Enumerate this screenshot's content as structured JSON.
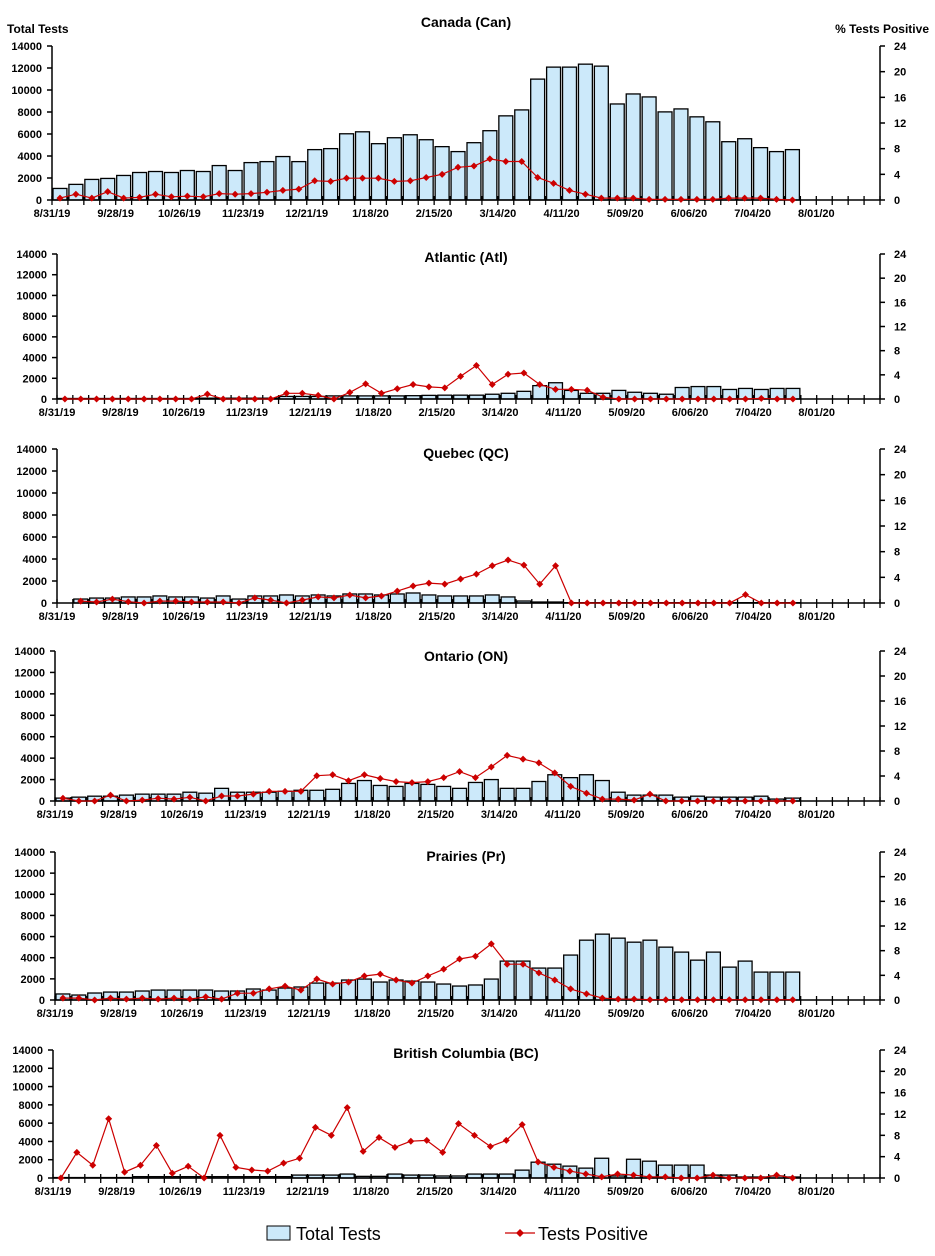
{
  "left_axis_label": "Total Tests",
  "right_axis_label": "% Tests Positive",
  "legend": {
    "bars": "Total Tests",
    "line": "Tests Positive"
  },
  "colors": {
    "bar_fill": "#cce9fa",
    "bar_stroke": "#000000",
    "line": "#cc0000"
  },
  "weeks": [
    "2019-08-31",
    "2019-09-07",
    "2019-09-14",
    "2019-09-21",
    "2019-09-28",
    "2019-10-05",
    "2019-10-12",
    "2019-10-19",
    "2019-10-26",
    "2019-11-02",
    "2019-11-09",
    "2019-11-16",
    "2019-11-23",
    "2019-11-30",
    "2019-12-07",
    "2019-12-14",
    "2019-12-21",
    "2019-12-28",
    "2020-01-04",
    "2020-01-11",
    "2020-01-18",
    "2020-01-25",
    "2020-02-01",
    "2020-02-08",
    "2020-02-15",
    "2020-02-22",
    "2020-02-29",
    "2020-03-07",
    "2020-03-14",
    "2020-03-21",
    "2020-03-28",
    "2020-04-04",
    "2020-04-11",
    "2020-04-18",
    "2020-04-25",
    "2020-05-02",
    "2020-05-09",
    "2020-05-16",
    "2020-05-23",
    "2020-05-30",
    "2020-06-06",
    "2020-06-13",
    "2020-06-20",
    "2020-06-27",
    "2020-07-04",
    "2020-07-11",
    "2020-07-18"
  ],
  "x_tick_labels": [
    "8/31/19",
    "9/28/19",
    "10/26/19",
    "11/23/19",
    "12/21/19",
    "1/18/20",
    "2/15/20",
    "3/14/20",
    "4/11/20",
    "5/09/20",
    "6/06/20",
    "7/04/20",
    "8/01/20"
  ],
  "left_ticks": [
    0,
    2000,
    4000,
    6000,
    8000,
    10000,
    12000,
    14000
  ],
  "right_ticks": [
    0,
    4,
    8,
    12,
    16,
    20,
    24
  ],
  "chart_data": [
    {
      "type": "bar+line",
      "title": "Canada (Can)",
      "ylim": [
        0,
        14000
      ],
      "y2lim": [
        0,
        24
      ],
      "series": [
        {
          "name": "Total Tests",
          "axis": "left",
          "values": [
            1050,
            1420,
            1870,
            1960,
            2230,
            2500,
            2590,
            2500,
            2680,
            2590,
            3130,
            2680,
            3400,
            3490,
            3950,
            3490,
            4580,
            4670,
            6020,
            6200,
            5120,
            5660,
            5930,
            5480,
            4850,
            4400,
            5210,
            6300,
            7650,
            8190,
            10990,
            12080,
            12080,
            12350,
            12170,
            8730,
            9640,
            9370,
            8010,
            8280,
            7560,
            7110,
            5300,
            5570,
            4760,
            4400,
            4580
          ]
        },
        {
          "name": "Tests Positive",
          "axis": "right",
          "values": [
            0.3,
            0.9,
            0.3,
            1.3,
            0.3,
            0.4,
            0.9,
            0.5,
            0.6,
            0.5,
            1.0,
            0.9,
            1.0,
            1.2,
            1.5,
            1.7,
            3.0,
            2.9,
            3.4,
            3.4,
            3.4,
            2.9,
            3.0,
            3.5,
            4.0,
            5.1,
            5.3,
            6.4,
            6.0,
            6.0,
            3.5,
            2.6,
            1.5,
            0.9,
            0.3,
            0.3,
            0.3,
            0.1,
            0.1,
            0.1,
            0.1,
            0.1,
            0.3,
            0.3,
            0.3,
            0.1,
            0.0
          ]
        }
      ]
    },
    {
      "type": "bar+line",
      "title": "Atlantic (Atl)",
      "ylim": [
        0,
        14000
      ],
      "y2lim": [
        0,
        24
      ],
      "series": [
        {
          "name": "Total Tests",
          "axis": "left",
          "values": [
            50,
            50,
            50,
            50,
            50,
            50,
            50,
            50,
            50,
            80,
            80,
            80,
            80,
            80,
            250,
            250,
            250,
            300,
            300,
            300,
            300,
            300,
            320,
            350,
            370,
            370,
            370,
            460,
            550,
            740,
            1290,
            1570,
            830,
            550,
            550,
            830,
            650,
            550,
            460,
            1110,
            1200,
            1200,
            920,
            1020,
            920,
            1020,
            1020
          ]
        },
        {
          "name": "Tests Positive",
          "axis": "right",
          "values": [
            0,
            0,
            0,
            0,
            0,
            0,
            0,
            0,
            0,
            0.8,
            0,
            0,
            0,
            0,
            0.95,
            0.95,
            0.6,
            0,
            1.1,
            2.5,
            0.95,
            1.7,
            2.4,
            2.0,
            1.85,
            3.75,
            5.55,
            2.4,
            4.1,
            4.3,
            2.4,
            1.6,
            1.6,
            1.45,
            0.3,
            0,
            0,
            0,
            0,
            0,
            0,
            0,
            0,
            0,
            0.1,
            0,
            0
          ]
        }
      ]
    },
    {
      "type": "bar+line",
      "title": "Quebec (QC)",
      "ylim": [
        0,
        14000
      ],
      "y2lim": [
        0,
        24
      ],
      "series": [
        {
          "name": "Total Tests",
          "axis": "left",
          "values": [
            null,
            360,
            450,
            450,
            550,
            550,
            640,
            550,
            550,
            450,
            640,
            360,
            640,
            640,
            730,
            640,
            730,
            640,
            820,
            820,
            730,
            820,
            910,
            730,
            640,
            640,
            640,
            730,
            550,
            180,
            90,
            90,
            30,
            30,
            30,
            30,
            30,
            30,
            30,
            30,
            30,
            30,
            30,
            30,
            30,
            30,
            30
          ]
        },
        {
          "name": "Tests Positive",
          "axis": "right",
          "values": [
            null,
            0.3,
            0.15,
            0.6,
            0.2,
            0,
            0.3,
            0.3,
            0.15,
            0.15,
            0.15,
            0,
            0.8,
            0.45,
            0,
            0.45,
            0.95,
            0.8,
            1.25,
            0.8,
            1.1,
            1.85,
            2.65,
            3.1,
            2.95,
            3.75,
            4.5,
            5.8,
            6.7,
            5.9,
            2.95,
            5.8,
            0,
            0,
            0,
            0,
            0,
            0,
            0,
            0,
            0,
            0,
            0,
            1.3,
            0,
            0,
            0
          ]
        }
      ]
    },
    {
      "type": "bar+line",
      "title": "Ontario (ON)",
      "ylim": [
        0,
        14000
      ],
      "y2lim": [
        0,
        24
      ],
      "series": [
        {
          "name": "Total Tests",
          "axis": "left",
          "values": [
            270,
            360,
            450,
            450,
            550,
            640,
            640,
            640,
            820,
            730,
            1180,
            820,
            820,
            820,
            910,
            1000,
            1000,
            1090,
            1640,
            1910,
            1450,
            1360,
            1640,
            1550,
            1360,
            1180,
            1730,
            2000,
            1180,
            1180,
            1820,
            2450,
            2180,
            2450,
            1910,
            820,
            550,
            550,
            550,
            360,
            450,
            360,
            360,
            360,
            450,
            180,
            270
          ]
        },
        {
          "name": "Tests Positive",
          "axis": "right",
          "values": [
            0.45,
            0,
            0,
            0.95,
            0,
            0.15,
            0.45,
            0.3,
            0.6,
            0,
            0.8,
            0.8,
            1.1,
            1.55,
            1.55,
            1.55,
            4.05,
            4.2,
            3.25,
            4.2,
            3.6,
            3.1,
            2.95,
            3.1,
            3.75,
            4.7,
            3.75,
            5.45,
            7.3,
            6.7,
            6.1,
            4.5,
            2.35,
            1.25,
            0.3,
            0.3,
            0.15,
            1.1,
            0,
            0,
            0,
            0,
            0,
            0,
            0,
            0,
            0
          ]
        }
      ]
    },
    {
      "type": "bar+line",
      "title": "Prairies (Pr)",
      "ylim": [
        0,
        14000
      ],
      "y2lim": [
        0,
        24
      ],
      "series": [
        {
          "name": "Total Tests",
          "axis": "left",
          "values": [
            570,
            470,
            660,
            750,
            750,
            850,
            940,
            940,
            940,
            940,
            850,
            850,
            1040,
            940,
            1130,
            1230,
            1600,
            1600,
            1890,
            1980,
            1700,
            1890,
            1790,
            1700,
            1510,
            1320,
            1420,
            1980,
            3680,
            3680,
            3020,
            3020,
            4250,
            5660,
            6230,
            5850,
            5470,
            5660,
            5000,
            4530,
            3770,
            4530,
            3110,
            3680,
            2640,
            2640,
            2640
          ]
        },
        {
          "name": "Tests Positive",
          "axis": "right",
          "values": [
            0.3,
            0.3,
            0,
            0.3,
            0.15,
            0.3,
            0.15,
            0.3,
            0.15,
            0.5,
            0.15,
            1.1,
            1.1,
            1.8,
            2.25,
            1.6,
            3.4,
            2.6,
            2.9,
            3.9,
            4.2,
            3.25,
            2.75,
            3.9,
            5.0,
            6.65,
            7.1,
            9.1,
            5.8,
            5.8,
            4.4,
            3.25,
            1.8,
            1.0,
            0.3,
            0.15,
            0.15,
            0.05,
            0.05,
            0.05,
            0.05,
            0.05,
            0.05,
            0.05,
            0.05,
            0.05,
            0.05
          ]
        }
      ]
    },
    {
      "type": "bar+line",
      "title": "British Columbia (BC)",
      "ylim": [
        0,
        14000
      ],
      "y2lim": [
        0,
        24
      ],
      "series": [
        {
          "name": "Total Tests",
          "axis": "left",
          "values": [
            50,
            50,
            50,
            50,
            50,
            150,
            150,
            150,
            150,
            150,
            150,
            150,
            150,
            150,
            150,
            320,
            320,
            320,
            430,
            180,
            180,
            430,
            320,
            320,
            220,
            220,
            430,
            430,
            430,
            860,
            1730,
            1510,
            1300,
            1080,
            2160,
            220,
            2050,
            1840,
            1410,
            1410,
            1410,
            320,
            320,
            110,
            110,
            220,
            110
          ]
        },
        {
          "name": "Tests Positive",
          "axis": "right",
          "values": [
            0,
            4.8,
            2.4,
            11.1,
            1.1,
            2.4,
            6.1,
            0.9,
            2.2,
            0,
            8.0,
            2.0,
            1.5,
            1.3,
            2.8,
            3.7,
            9.5,
            8.0,
            13.2,
            5.0,
            7.6,
            5.75,
            6.9,
            7.05,
            4.8,
            10.2,
            8.0,
            5.9,
            7.05,
            10.0,
            3.0,
            2.0,
            1.3,
            0.75,
            0.2,
            0.75,
            0.55,
            0.2,
            0.2,
            0,
            0,
            0.55,
            0,
            0,
            0,
            0.55,
            0
          ]
        }
      ]
    }
  ]
}
